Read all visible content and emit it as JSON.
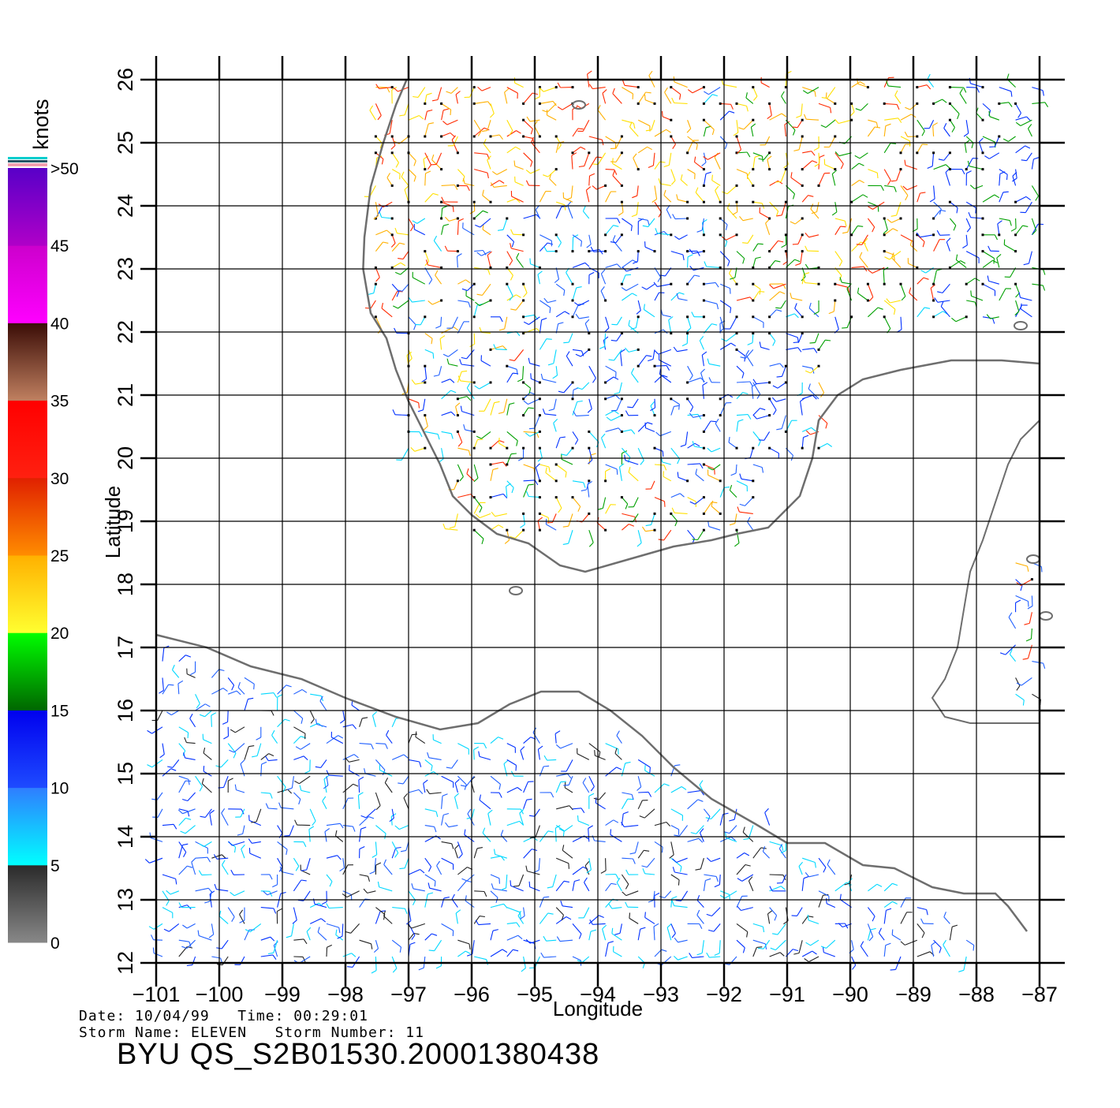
{
  "map": {
    "x_axis_label": "Longitude",
    "y_axis_label": "Latitude",
    "lon_ticks": [
      "−101",
      "−100",
      "−99",
      "−98",
      "−97",
      "−96",
      "−95",
      "−94",
      "−93",
      "−92",
      "−91",
      "−90",
      "−89",
      "−88",
      "−87"
    ],
    "lat_ticks": [
      "12",
      "13",
      "14",
      "15",
      "16",
      "17",
      "18",
      "19",
      "20",
      "21",
      "22",
      "23",
      "24",
      "25",
      "26"
    ],
    "lon_range": [
      -101,
      -87
    ],
    "lat_range": [
      12,
      26
    ],
    "grid": true,
    "coastline_color": "#6e6e6e"
  },
  "colorbar": {
    "unit_label": "knots",
    "ticks": [
      "0",
      "5",
      "10",
      "15",
      "20",
      "25",
      "30",
      "35",
      "40",
      "45",
      ">50"
    ],
    "bands": [
      {
        "range": "0-5",
        "colors": [
          "#888888",
          "#2a2a2a"
        ]
      },
      {
        "range": "5-10",
        "colors": [
          "#00ffff",
          "#2f7dff"
        ]
      },
      {
        "range": "10-15",
        "colors": [
          "#1e4bff",
          "#0000ee"
        ]
      },
      {
        "range": "15-20",
        "colors": [
          "#006600",
          "#00ff00"
        ]
      },
      {
        "range": "20-25",
        "colors": [
          "#ffff30",
          "#ffb000"
        ]
      },
      {
        "range": "25-30",
        "colors": [
          "#ff8c00",
          "#e02000"
        ]
      },
      {
        "range": "30-35",
        "colors": [
          "#ff2010",
          "#ff0000"
        ]
      },
      {
        "range": "35-40",
        "colors": [
          "#c08060",
          "#3a0c06"
        ]
      },
      {
        "range": "40-45",
        "colors": [
          "#ff00ff",
          "#cc00cc"
        ]
      },
      {
        "range": "45-50",
        "colors": [
          "#b000c8",
          "#5800c8"
        ]
      }
    ]
  },
  "info": {
    "date_line": "Date: 10/04/99   Time: 00:29:01",
    "storm_line": "Storm Name: ELEVEN   Storm Number: 11",
    "product": "BYU QS_S2B01530.20001380438"
  }
}
